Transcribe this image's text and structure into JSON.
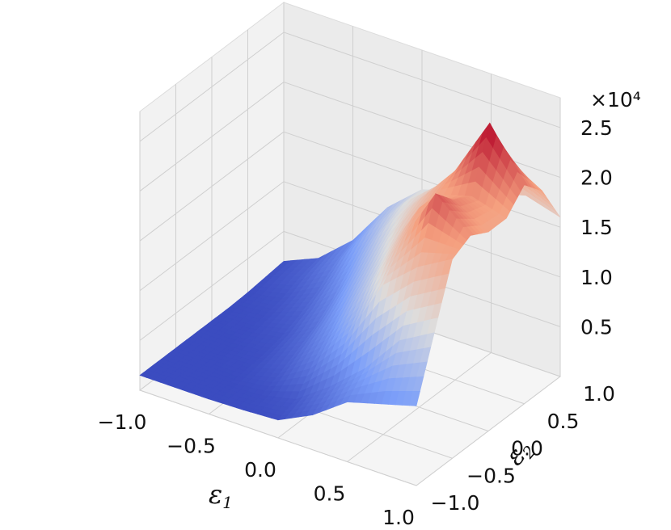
{
  "chart_data": {
    "type": "surface",
    "colormap": "coolwarm",
    "grid": true,
    "xlabel": "ε",
    "xlabel_sub": "1",
    "ylabel": "ε",
    "ylabel_sub": "2",
    "zlabel": "",
    "z_scale_note": "×10⁴",
    "x_ticks": [
      "−1.0",
      "−0.5",
      "0.0",
      "0.5",
      "1.0"
    ],
    "y_ticks": [
      "−1.0",
      "−0.5",
      "0.0",
      "0.5",
      "1.0"
    ],
    "z_ticks": [
      "0.5",
      "1.0",
      "1.5",
      "2.0",
      "2.5"
    ],
    "xlim": [
      -1.0,
      1.0
    ],
    "ylim": [
      -1.0,
      1.0
    ],
    "zlim": [
      0,
      28000
    ],
    "x": [
      -1.0,
      -0.75,
      -0.5,
      -0.25,
      0.0,
      0.25,
      0.5,
      0.75,
      1.0
    ],
    "y": [
      -1.0,
      -0.75,
      -0.5,
      -0.25,
      0.0,
      0.25,
      0.5,
      0.75,
      1.0
    ],
    "z": [
      [
        1500,
        1500,
        1500,
        1600,
        1800,
        3500,
        6000,
        7000,
        8000
      ],
      [
        1500,
        1500,
        1500,
        1700,
        2500,
        5000,
        8000,
        12000,
        14000
      ],
      [
        1500,
        1500,
        1600,
        2500,
        5000,
        9000,
        15000,
        18000,
        20000
      ],
      [
        1500,
        1500,
        1800,
        3500,
        7000,
        12000,
        18000,
        24000,
        21000
      ],
      [
        1500,
        1600,
        2200,
        4500,
        9000,
        14000,
        20000,
        22000,
        20000
      ],
      [
        1500,
        1800,
        3000,
        6000,
        11000,
        16000,
        20000,
        21000,
        20000
      ],
      [
        1600,
        2200,
        4000,
        8000,
        13000,
        17000,
        21000,
        27000,
        22000
      ],
      [
        1800,
        3000,
        5500,
        10000,
        14000,
        17000,
        20000,
        22000,
        20000
      ],
      [
        2000,
        3500,
        6500,
        11000,
        14000,
        15000,
        16000,
        17000,
        16000
      ]
    ]
  }
}
